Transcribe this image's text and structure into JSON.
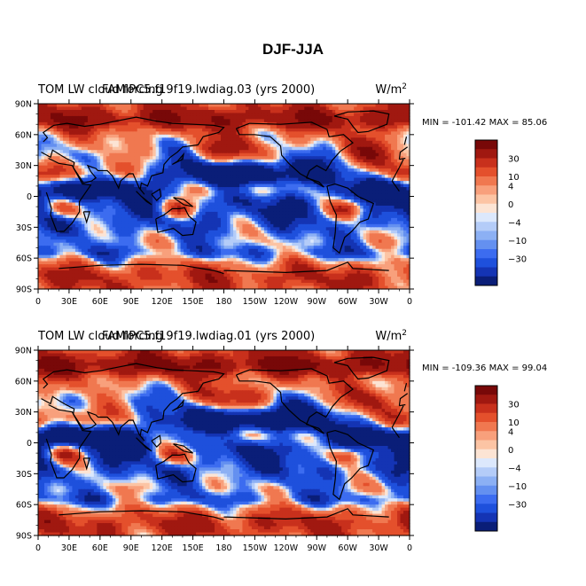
{
  "figure": {
    "title": "DJF-JJA"
  },
  "panels": [
    {
      "left_label": "TOM LW cloud forcing",
      "center_label": "FAMIPC5.f19f19.lwdiag.03 (yrs 2000)",
      "units": "W/m",
      "units_sup": "2",
      "stats": "MIN = -101.42 MAX =  85.06"
    },
    {
      "left_label": "TOM LW cloud forcing",
      "center_label": "FAMIPC5.f19f19.lwdiag.01 (yrs 2000)",
      "units": "W/m",
      "units_sup": "2",
      "stats": "MIN = -109.36 MAX =  99.04"
    }
  ],
  "chart_data": [
    {
      "type": "heatmap",
      "title": "FAMIPC5.f19f19.lwdiag.03 (yrs 2000)",
      "subtitle": "TOM LW cloud forcing",
      "units": "W/m^2",
      "min": -101.42,
      "max": 85.06,
      "x_ticks": [
        "0",
        "30E",
        "60E",
        "90E",
        "120E",
        "150E",
        "180",
        "150W",
        "120W",
        "90W",
        "60W",
        "30W",
        "0"
      ],
      "y_ticks": [
        "90N",
        "60N",
        "30N",
        "0",
        "30S",
        "60S",
        "90S"
      ],
      "xlim": [
        0,
        360
      ],
      "ylim": [
        -90,
        90
      ],
      "colorbar_labels": [
        "30",
        "10",
        "4",
        "0",
        "-4",
        "-10",
        "-30"
      ],
      "colors": [
        "#0a1e78",
        "#1434b4",
        "#1e50dc",
        "#3c6cf0",
        "#6490f0",
        "#8cb0f4",
        "#b4ccf8",
        "#dce8fc",
        "#fce4d4",
        "#fcc4a4",
        "#f8a07c",
        "#f07850",
        "#e4502c",
        "#c8301c",
        "#a01810",
        "#780808"
      ]
    },
    {
      "type": "heatmap",
      "title": "FAMIPC5.f19f19.lwdiag.01 (yrs 2000)",
      "subtitle": "TOM LW cloud forcing",
      "units": "W/m^2",
      "min": -109.36,
      "max": 99.04,
      "x_ticks": [
        "0",
        "30E",
        "60E",
        "90E",
        "120E",
        "150E",
        "180",
        "150W",
        "120W",
        "90W",
        "60W",
        "30W",
        "0"
      ],
      "y_ticks": [
        "90N",
        "60N",
        "30N",
        "0",
        "30S",
        "60S",
        "90S"
      ],
      "xlim": [
        0,
        360
      ],
      "ylim": [
        -90,
        90
      ],
      "colorbar_labels": [
        "30",
        "10",
        "4",
        "0",
        "-4",
        "-10",
        "-30"
      ],
      "colors": [
        "#0a1e78",
        "#1434b4",
        "#1e50dc",
        "#3c6cf0",
        "#6490f0",
        "#8cb0f4",
        "#b4ccf8",
        "#dce8fc",
        "#fce4d4",
        "#fcc4a4",
        "#f8a07c",
        "#f07850",
        "#e4502c",
        "#c8301c",
        "#a01810",
        "#780808"
      ]
    }
  ]
}
